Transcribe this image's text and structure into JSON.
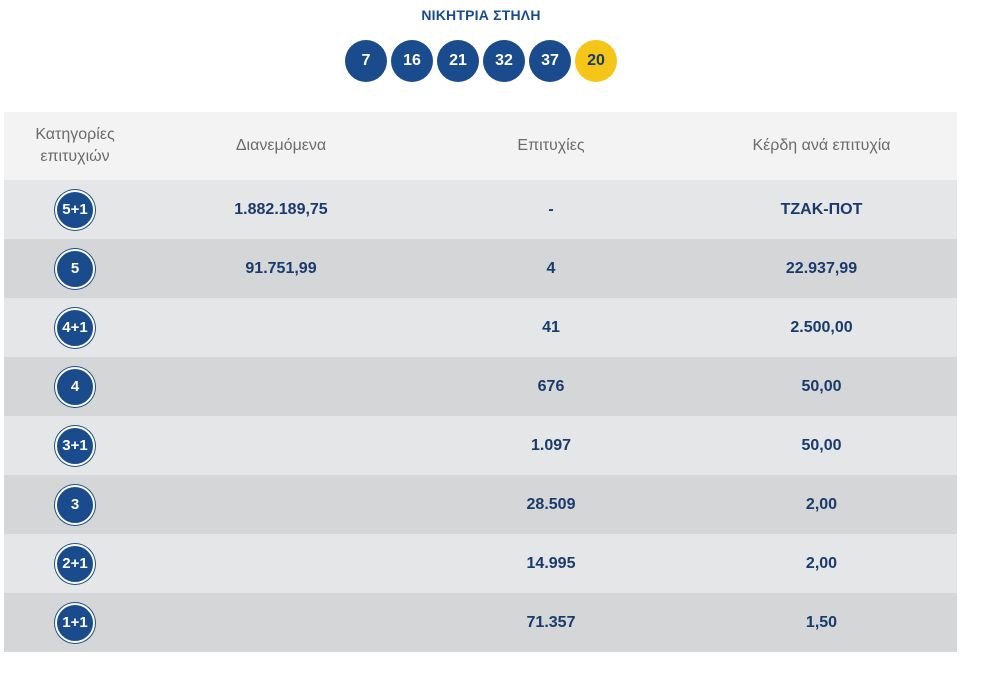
{
  "title": "ΝΙΚΗΤΡΙΑ ΣΤΗΛΗ",
  "numbers": [
    "7",
    "16",
    "21",
    "32",
    "37"
  ],
  "bonus": "20",
  "colors": {
    "primary": "#1a4b8c",
    "bonus": "#f5c518"
  },
  "headers": {
    "category_line1": "Κατηγορίες",
    "category_line2": "επιτυχιών",
    "distributed": "Διανεμόμενα",
    "winners": "Επιτυχίες",
    "prize": "Κέρδη ανά επιτυχία"
  },
  "rows": [
    {
      "category": "5+1",
      "distributed": "1.882.189,75",
      "winners": "-",
      "prize": "ΤΖΑΚ-ΠΟΤ"
    },
    {
      "category": "5",
      "distributed": "91.751,99",
      "winners": "4",
      "prize": "22.937,99"
    },
    {
      "category": "4+1",
      "distributed": "",
      "winners": "41",
      "prize": "2.500,00"
    },
    {
      "category": "4",
      "distributed": "",
      "winners": "676",
      "prize": "50,00"
    },
    {
      "category": "3+1",
      "distributed": "",
      "winners": "1.097",
      "prize": "50,00"
    },
    {
      "category": "3",
      "distributed": "",
      "winners": "28.509",
      "prize": "2,00"
    },
    {
      "category": "2+1",
      "distributed": "",
      "winners": "14.995",
      "prize": "2,00"
    },
    {
      "category": "1+1",
      "distributed": "",
      "winners": "71.357",
      "prize": "1,50"
    }
  ]
}
